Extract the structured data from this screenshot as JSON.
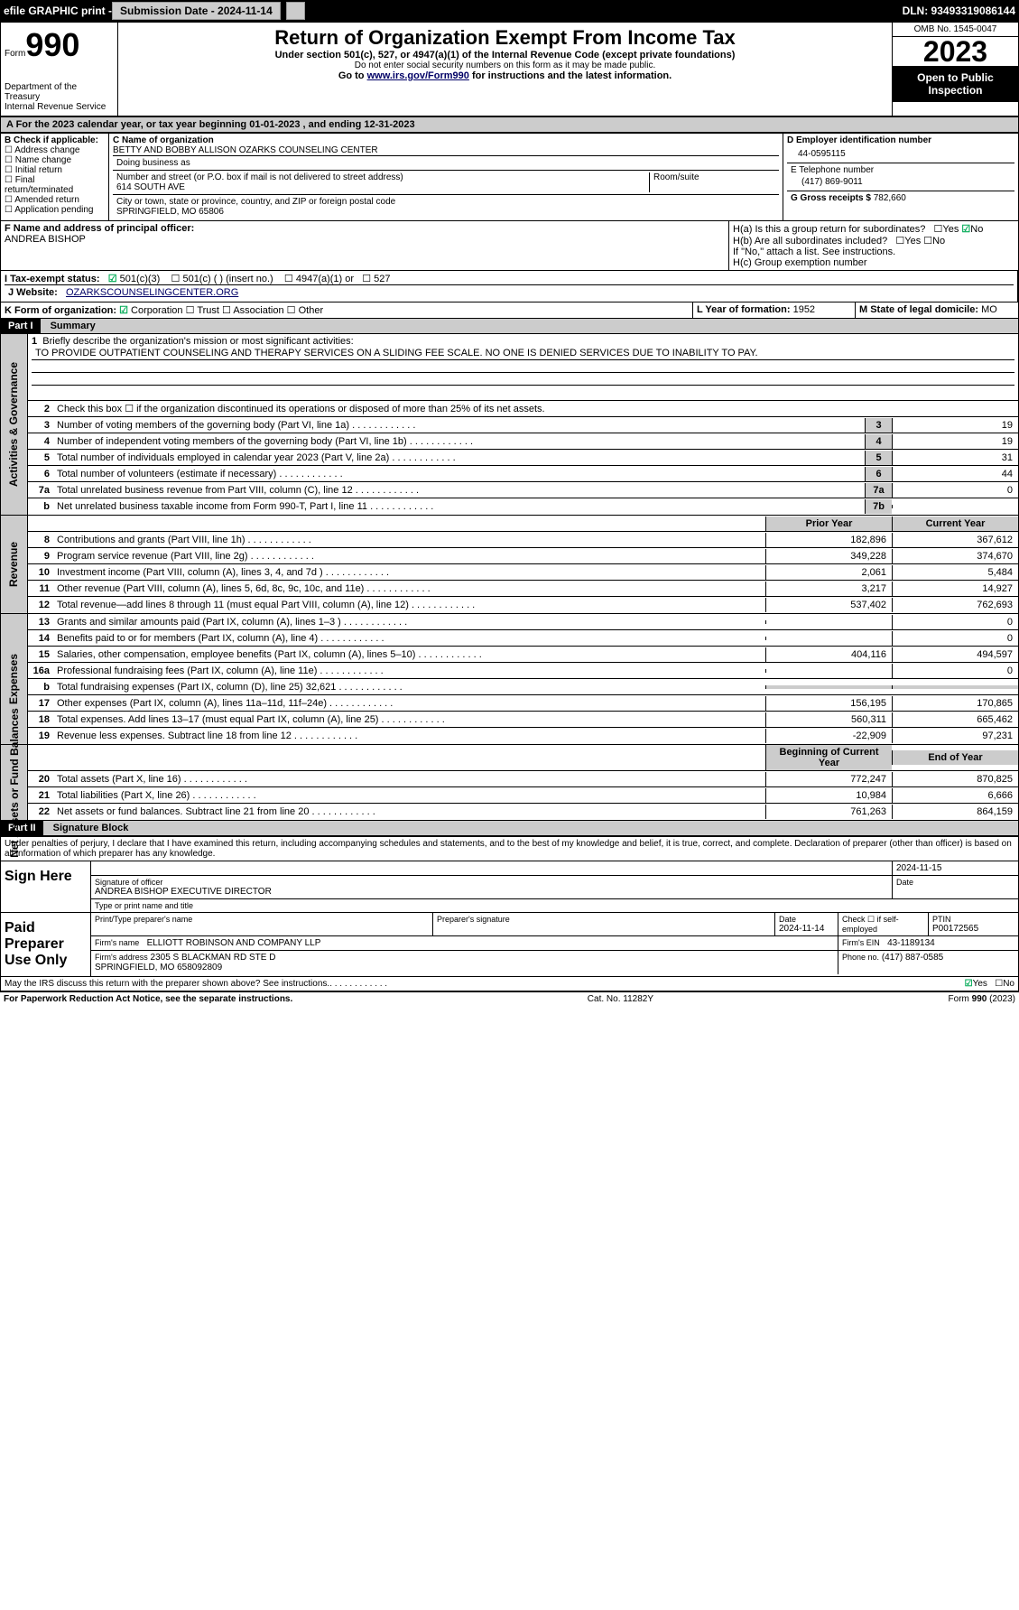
{
  "header": {
    "efile": "efile GRAPHIC print -",
    "submission": "Submission Date - 2024-11-14",
    "dln": "DLN: 93493319086144"
  },
  "form": {
    "form_label": "Form",
    "form_num": "990",
    "title": "Return of Organization Exempt From Income Tax",
    "sub1": "Under section 501(c), 527, or 4947(a)(1) of the Internal Revenue Code (except private foundations)",
    "sub2": "Do not enter social security numbers on this form as it may be made public.",
    "sub3_pre": "Go to ",
    "sub3_link": "www.irs.gov/Form990",
    "sub3_post": " for instructions and the latest information.",
    "dept": "Department of the Treasury\nInternal Revenue Service",
    "omb": "OMB No. 1545-0047",
    "year": "2023",
    "inspect": "Open to Public Inspection"
  },
  "period": {
    "text_pre": "A For the 2023 calendar year, or tax year beginning ",
    "begin": "01-01-2023",
    "text_mid": " , and ending ",
    "end": "12-31-2023"
  },
  "boxB": {
    "label": "B Check if applicable:",
    "items": [
      "Address change",
      "Name change",
      "Initial return",
      "Final return/terminated",
      "Amended return",
      "Application pending"
    ]
  },
  "boxC": {
    "name_label": "C Name of organization",
    "name": "BETTY AND BOBBY ALLISON OZARKS COUNSELING CENTER",
    "dba_label": "Doing business as",
    "dba": "",
    "addr_label": "Number and street (or P.O. box if mail is not delivered to street address)",
    "addr": "614 SOUTH AVE",
    "room_label": "Room/suite",
    "city_label": "City or town, state or province, country, and ZIP or foreign postal code",
    "city": "SPRINGFIELD, MO  65806"
  },
  "boxD": {
    "label": "D Employer identification number",
    "ein": "44-0595115"
  },
  "boxE": {
    "label": "E Telephone number",
    "phone": "(417) 869-9011"
  },
  "boxG": {
    "label": "G Gross receipts $",
    "amount": "782,660"
  },
  "boxF": {
    "label": "F  Name and address of principal officer:",
    "name": "ANDREA BISHOP"
  },
  "boxH": {
    "ha_label": "H(a)  Is this a group return for subordinates?",
    "ha_no": "No",
    "hb_label": "H(b)  Are all subordinates included?",
    "hb_note": "If \"No,\" attach a list. See instructions.",
    "hc_label": "H(c)  Group exemption number"
  },
  "boxI": {
    "label": "I    Tax-exempt status:",
    "opt1": "501(c)(3)",
    "opt2": "501(c) (  ) (insert no.)",
    "opt3": "4947(a)(1) or",
    "opt4": "527"
  },
  "boxJ": {
    "label": "J    Website:",
    "url": "OZARKSCOUNSELINGCENTER.ORG"
  },
  "boxK": {
    "label": "K Form of organization:",
    "opts": [
      "Corporation",
      "Trust",
      "Association",
      "Other"
    ]
  },
  "boxL": {
    "label": "L Year of formation:",
    "year": "1952"
  },
  "boxM": {
    "label": "M State of legal domicile:",
    "state": "MO"
  },
  "part1": {
    "header": "Part I",
    "title": "Summary",
    "line1_label": "Briefly describe the organization's mission or most significant activities:",
    "mission": "TO PROVIDE OUTPATIENT COUNSELING AND THERAPY SERVICES ON A SLIDING FEE SCALE. NO ONE IS DENIED SERVICES DUE TO INABILITY TO PAY.",
    "line2": "Check this box ☐ if the organization discontinued its operations or disposed of more than 25% of its net assets.",
    "rows_a": [
      {
        "n": "3",
        "txt": "Number of voting members of the governing body (Part VI, line 1a)",
        "box": "3",
        "val": "19"
      },
      {
        "n": "4",
        "txt": "Number of independent voting members of the governing body (Part VI, line 1b)",
        "box": "4",
        "val": "19"
      },
      {
        "n": "5",
        "txt": "Total number of individuals employed in calendar year 2023 (Part V, line 2a)",
        "box": "5",
        "val": "31"
      },
      {
        "n": "6",
        "txt": "Total number of volunteers (estimate if necessary)",
        "box": "6",
        "val": "44"
      },
      {
        "n": "7a",
        "txt": "Total unrelated business revenue from Part VIII, column (C), line 12",
        "box": "7a",
        "val": "0"
      },
      {
        "n": "b",
        "txt": "Net unrelated business taxable income from Form 990-T, Part I, line 11",
        "box": "7b",
        "val": ""
      }
    ],
    "col_prior": "Prior Year",
    "col_current": "Current Year",
    "rows_rev": [
      {
        "n": "8",
        "txt": "Contributions and grants (Part VIII, line 1h)",
        "p": "182,896",
        "c": "367,612"
      },
      {
        "n": "9",
        "txt": "Program service revenue (Part VIII, line 2g)",
        "p": "349,228",
        "c": "374,670"
      },
      {
        "n": "10",
        "txt": "Investment income (Part VIII, column (A), lines 3, 4, and 7d )",
        "p": "2,061",
        "c": "5,484"
      },
      {
        "n": "11",
        "txt": "Other revenue (Part VIII, column (A), lines 5, 6d, 8c, 9c, 10c, and 11e)",
        "p": "3,217",
        "c": "14,927"
      },
      {
        "n": "12",
        "txt": "Total revenue—add lines 8 through 11 (must equal Part VIII, column (A), line 12)",
        "p": "537,402",
        "c": "762,693"
      }
    ],
    "rows_exp": [
      {
        "n": "13",
        "txt": "Grants and similar amounts paid (Part IX, column (A), lines 1–3 )",
        "p": "",
        "c": "0"
      },
      {
        "n": "14",
        "txt": "Benefits paid to or for members (Part IX, column (A), line 4)",
        "p": "",
        "c": "0"
      },
      {
        "n": "15",
        "txt": "Salaries, other compensation, employee benefits (Part IX, column (A), lines 5–10)",
        "p": "404,116",
        "c": "494,597"
      },
      {
        "n": "16a",
        "txt": "Professional fundraising fees (Part IX, column (A), line 11e)",
        "p": "",
        "c": "0"
      },
      {
        "n": "b",
        "txt": "Total fundraising expenses (Part IX, column (D), line 25) 32,621",
        "p": "shade",
        "c": "shade"
      },
      {
        "n": "17",
        "txt": "Other expenses (Part IX, column (A), lines 11a–11d, 11f–24e)",
        "p": "156,195",
        "c": "170,865"
      },
      {
        "n": "18",
        "txt": "Total expenses. Add lines 13–17 (must equal Part IX, column (A), line 25)",
        "p": "560,311",
        "c": "665,462"
      },
      {
        "n": "19",
        "txt": "Revenue less expenses. Subtract line 18 from line 12",
        "p": "-22,909",
        "c": "97,231"
      }
    ],
    "col_begin": "Beginning of Current Year",
    "col_end": "End of Year",
    "rows_net": [
      {
        "n": "20",
        "txt": "Total assets (Part X, line 16)",
        "p": "772,247",
        "c": "870,825"
      },
      {
        "n": "21",
        "txt": "Total liabilities (Part X, line 26)",
        "p": "10,984",
        "c": "6,666"
      },
      {
        "n": "22",
        "txt": "Net assets or fund balances. Subtract line 21 from line 20",
        "p": "761,263",
        "c": "864,159"
      }
    ],
    "side_ag": "Activities & Governance",
    "side_rev": "Revenue",
    "side_exp": "Expenses",
    "side_net": "Net Assets or Fund Balances"
  },
  "part2": {
    "header": "Part II",
    "title": "Signature Block",
    "perjury": "Under penalties of perjury, I declare that I have examined this return, including accompanying schedules and statements, and to the best of my knowledge and belief, it is true, correct, and complete. Declaration of preparer (other than officer) is based on all information of which preparer has any knowledge.",
    "sign_here": "Sign Here",
    "sig_date": "2024-11-15",
    "sig_officer_label": "Signature of officer",
    "sig_name": "ANDREA BISHOP EXECUTIVE DIRECTOR",
    "sig_type_label": "Type or print name and title",
    "date_label": "Date",
    "paid": "Paid Preparer Use Only",
    "prep_name_label": "Print/Type preparer's name",
    "prep_sig_label": "Preparer's signature",
    "prep_date": "2024-11-14",
    "check_self": "Check ☐ if self-employed",
    "ptin_label": "PTIN",
    "ptin": "P00172565",
    "firm_name_label": "Firm's name",
    "firm_name": "ELLIOTT ROBINSON AND COMPANY LLP",
    "firm_ein_label": "Firm's EIN",
    "firm_ein": "43-1189134",
    "firm_addr_label": "Firm's address",
    "firm_addr": "2305 S BLACKMAN RD STE D",
    "firm_city": "SPRINGFIELD, MO  658092809",
    "firm_phone_label": "Phone no.",
    "firm_phone": "(417) 887-0585",
    "discuss": "May the IRS discuss this return with the preparer shown above? See instructions.",
    "yes": "Yes",
    "no": "No"
  },
  "footer": {
    "pra": "For Paperwork Reduction Act Notice, see the separate instructions.",
    "cat": "Cat. No. 11282Y",
    "form": "Form 990 (2023)"
  }
}
